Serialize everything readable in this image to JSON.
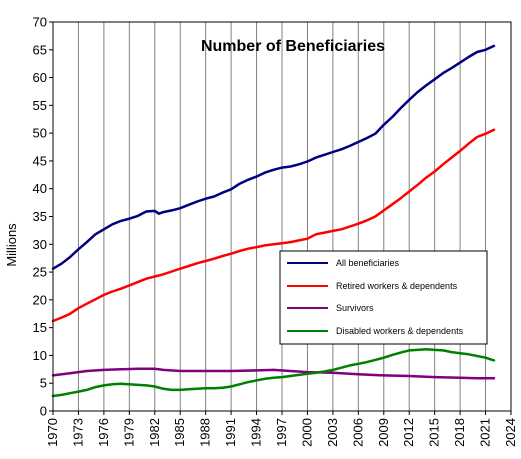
{
  "chart_data": {
    "type": "line",
    "title": "Number of Beneficiaries",
    "xlabel": "",
    "ylabel": "Millions",
    "xlim": [
      1970,
      2024
    ],
    "ylim": [
      0,
      70
    ],
    "x_ticks": [
      1970,
      1973,
      1976,
      1979,
      1982,
      1985,
      1988,
      1991,
      1994,
      1997,
      2000,
      2003,
      2006,
      2009,
      2012,
      2015,
      2018,
      2021,
      2024
    ],
    "y_ticks": [
      0,
      5,
      10,
      15,
      20,
      25,
      30,
      35,
      40,
      45,
      50,
      55,
      60,
      65,
      70
    ],
    "x_tick_labels": [
      "1970",
      "1973",
      "1976",
      "1979",
      "1982",
      "1985",
      "1988",
      "1991",
      "1994",
      "1997",
      "2000",
      "2003",
      "2006",
      "2009",
      "2012",
      "2015",
      "2018",
      "2021",
      "2024"
    ],
    "y_tick_labels": [
      "0",
      "5",
      "10",
      "15",
      "20",
      "25",
      "30",
      "35",
      "40",
      "45",
      "50",
      "55",
      "60",
      "65",
      "70"
    ],
    "grid": "vertical",
    "legend_position": "right-center",
    "series": [
      {
        "name": "All beneficiaries",
        "color": "#000080",
        "points": [
          [
            1970,
            25.6
          ],
          [
            1971,
            26.5
          ],
          [
            1972,
            27.7
          ],
          [
            1973,
            29.1
          ],
          [
            1974,
            30.4
          ],
          [
            1975,
            31.8
          ],
          [
            1976,
            32.7
          ],
          [
            1977,
            33.6
          ],
          [
            1978,
            34.2
          ],
          [
            1979,
            34.6
          ],
          [
            1980,
            35.1
          ],
          [
            1981,
            35.9
          ],
          [
            1982,
            36.0
          ],
          [
            1982.5,
            35.5
          ],
          [
            1983,
            35.8
          ],
          [
            1984,
            36.1
          ],
          [
            1985,
            36.5
          ],
          [
            1986,
            37.1
          ],
          [
            1987,
            37.7
          ],
          [
            1988,
            38.2
          ],
          [
            1989,
            38.6
          ],
          [
            1990,
            39.3
          ],
          [
            1991,
            39.9
          ],
          [
            1992,
            40.9
          ],
          [
            1993,
            41.6
          ],
          [
            1994,
            42.2
          ],
          [
            1995,
            42.9
          ],
          [
            1996,
            43.4
          ],
          [
            1997,
            43.8
          ],
          [
            1998,
            44.0
          ],
          [
            1999,
            44.4
          ],
          [
            2000,
            44.9
          ],
          [
            2001,
            45.6
          ],
          [
            2002,
            46.1
          ],
          [
            2003,
            46.6
          ],
          [
            2004,
            47.1
          ],
          [
            2005,
            47.7
          ],
          [
            2006,
            48.4
          ],
          [
            2007,
            49.1
          ],
          [
            2008,
            49.9
          ],
          [
            2009,
            51.5
          ],
          [
            2010,
            52.9
          ],
          [
            2011,
            54.5
          ],
          [
            2012,
            56.0
          ],
          [
            2013,
            57.4
          ],
          [
            2014,
            58.6
          ],
          [
            2015,
            59.7
          ],
          [
            2016,
            60.8
          ],
          [
            2017,
            61.7
          ],
          [
            2018,
            62.7
          ],
          [
            2019,
            63.7
          ],
          [
            2020,
            64.6
          ],
          [
            2021,
            65.0
          ],
          [
            2022,
            65.7
          ]
        ]
      },
      {
        "name": "Retired workers & dependents",
        "color": "#ff0000",
        "points": [
          [
            1970,
            16.2
          ],
          [
            1971,
            16.8
          ],
          [
            1972,
            17.5
          ],
          [
            1973,
            18.5
          ],
          [
            1974,
            19.3
          ],
          [
            1975,
            20.1
          ],
          [
            1976,
            20.9
          ],
          [
            1977,
            21.5
          ],
          [
            1978,
            22.0
          ],
          [
            1979,
            22.6
          ],
          [
            1980,
            23.2
          ],
          [
            1981,
            23.8
          ],
          [
            1982,
            24.2
          ],
          [
            1983,
            24.6
          ],
          [
            1984,
            25.1
          ],
          [
            1985,
            25.6
          ],
          [
            1986,
            26.1
          ],
          [
            1987,
            26.6
          ],
          [
            1988,
            27.0
          ],
          [
            1989,
            27.4
          ],
          [
            1990,
            27.9
          ],
          [
            1991,
            28.3
          ],
          [
            1992,
            28.8
          ],
          [
            1993,
            29.2
          ],
          [
            1994,
            29.5
          ],
          [
            1995,
            29.8
          ],
          [
            1996,
            30.0
          ],
          [
            1997,
            30.2
          ],
          [
            1998,
            30.4
          ],
          [
            1999,
            30.7
          ],
          [
            2000,
            31.0
          ],
          [
            2001,
            31.8
          ],
          [
            2002,
            32.1
          ],
          [
            2003,
            32.4
          ],
          [
            2004,
            32.7
          ],
          [
            2005,
            33.2
          ],
          [
            2006,
            33.7
          ],
          [
            2007,
            34.3
          ],
          [
            2008,
            35.0
          ],
          [
            2009,
            36.1
          ],
          [
            2010,
            37.2
          ],
          [
            2011,
            38.3
          ],
          [
            2012,
            39.5
          ],
          [
            2013,
            40.7
          ],
          [
            2014,
            42.0
          ],
          [
            2015,
            43.1
          ],
          [
            2016,
            44.4
          ],
          [
            2017,
            45.6
          ],
          [
            2018,
            46.8
          ],
          [
            2019,
            48.1
          ],
          [
            2020,
            49.3
          ],
          [
            2021,
            49.9
          ],
          [
            2022,
            50.6
          ]
        ]
      },
      {
        "name": "Survivors",
        "color": "#800080",
        "points": [
          [
            1970,
            6.4
          ],
          [
            1972,
            6.8
          ],
          [
            1974,
            7.2
          ],
          [
            1976,
            7.4
          ],
          [
            1978,
            7.5
          ],
          [
            1980,
            7.6
          ],
          [
            1982,
            7.6
          ],
          [
            1983,
            7.4
          ],
          [
            1985,
            7.2
          ],
          [
            1988,
            7.2
          ],
          [
            1991,
            7.2
          ],
          [
            1994,
            7.3
          ],
          [
            1996,
            7.4
          ],
          [
            1998,
            7.2
          ],
          [
            2000,
            7.0
          ],
          [
            2003,
            6.9
          ],
          [
            2006,
            6.6
          ],
          [
            2009,
            6.4
          ],
          [
            2012,
            6.3
          ],
          [
            2015,
            6.1
          ],
          [
            2018,
            6.0
          ],
          [
            2020,
            5.9
          ],
          [
            2022,
            5.9
          ]
        ]
      },
      {
        "name": "Disabled workers & dependents",
        "color": "#008000",
        "points": [
          [
            1970,
            2.7
          ],
          [
            1971,
            2.9
          ],
          [
            1972,
            3.2
          ],
          [
            1973,
            3.5
          ],
          [
            1974,
            3.8
          ],
          [
            1975,
            4.3
          ],
          [
            1976,
            4.6
          ],
          [
            1977,
            4.8
          ],
          [
            1978,
            4.9
          ],
          [
            1979,
            4.8
          ],
          [
            1980,
            4.7
          ],
          [
            1981,
            4.6
          ],
          [
            1982,
            4.4
          ],
          [
            1983,
            4.0
          ],
          [
            1984,
            3.8
          ],
          [
            1985,
            3.8
          ],
          [
            1986,
            3.9
          ],
          [
            1987,
            4.0
          ],
          [
            1988,
            4.1
          ],
          [
            1989,
            4.1
          ],
          [
            1990,
            4.2
          ],
          [
            1991,
            4.4
          ],
          [
            1992,
            4.8
          ],
          [
            1993,
            5.2
          ],
          [
            1994,
            5.5
          ],
          [
            1995,
            5.8
          ],
          [
            1996,
            6.0
          ],
          [
            1997,
            6.1
          ],
          [
            1998,
            6.3
          ],
          [
            1999,
            6.5
          ],
          [
            2000,
            6.7
          ],
          [
            2001,
            6.9
          ],
          [
            2002,
            7.1
          ],
          [
            2003,
            7.4
          ],
          [
            2004,
            7.8
          ],
          [
            2005,
            8.2
          ],
          [
            2006,
            8.5
          ],
          [
            2007,
            8.8
          ],
          [
            2008,
            9.2
          ],
          [
            2009,
            9.6
          ],
          [
            2010,
            10.1
          ],
          [
            2011,
            10.5
          ],
          [
            2012,
            10.9
          ],
          [
            2013,
            11.0
          ],
          [
            2014,
            11.1
          ],
          [
            2015,
            11.0
          ],
          [
            2016,
            10.9
          ],
          [
            2017,
            10.6
          ],
          [
            2018,
            10.4
          ],
          [
            2019,
            10.2
          ],
          [
            2020,
            9.9
          ],
          [
            2021,
            9.6
          ],
          [
            2022,
            9.1
          ]
        ]
      }
    ]
  }
}
